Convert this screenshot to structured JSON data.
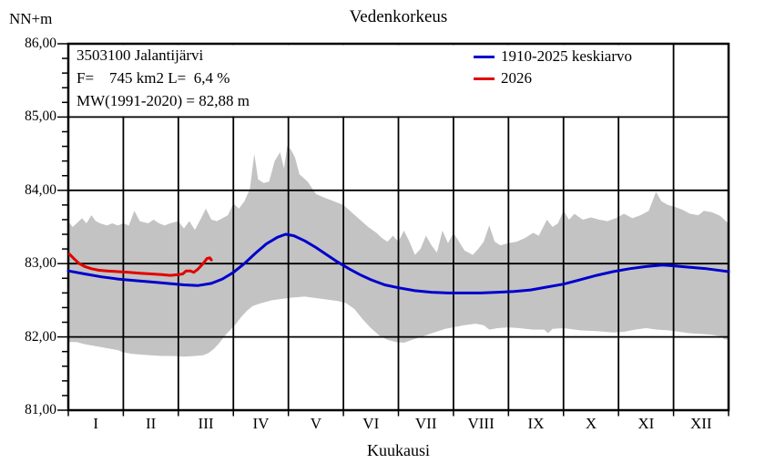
{
  "header": {
    "title": "Vedenkorkeus",
    "y_unit": "NN+m",
    "x_label": "Kuukausi"
  },
  "info_box": {
    "line1": "3503100 Jalantijärvi",
    "line2": "F=    745 km2 L=  6,4 %",
    "line3": "MW(1991-2020) = 82,88 m"
  },
  "legend": {
    "items": [
      {
        "label": "1910-2025 keskiarvo",
        "color": "#0000cd"
      },
      {
        "label": "2026",
        "color": "#e30000"
      }
    ]
  },
  "axis": {
    "y_ticks": [
      {
        "label": "86,00",
        "value": 86
      },
      {
        "label": "85,00",
        "value": 85
      },
      {
        "label": "84,00",
        "value": 84
      },
      {
        "label": "83,00",
        "value": 83
      },
      {
        "label": "82,00",
        "value": 82
      },
      {
        "label": "81,00",
        "value": 81
      }
    ],
    "month_labels": [
      "I",
      "II",
      "III",
      "IV",
      "V",
      "VI",
      "VII",
      "VIII",
      "IX",
      "X",
      "XI",
      "XII"
    ]
  },
  "chart_data": {
    "type": "line",
    "title": "Vedenkorkeus",
    "xlabel": "Kuukausi",
    "ylabel": "NN+m",
    "ylim": [
      81,
      86
    ],
    "xlim_months": [
      0,
      12
    ],
    "y_major_step": 1.0,
    "y_minor_step": 0.2,
    "grid": "major-black",
    "legend_position": "top-right-inside",
    "envelope": {
      "name": "1910-2025 min-max range",
      "color": "#c3c3c3",
      "max": [
        [
          0,
          83.58
        ],
        [
          0.08,
          83.5
        ],
        [
          0.15,
          83.55
        ],
        [
          0.25,
          83.62
        ],
        [
          0.33,
          83.55
        ],
        [
          0.42,
          83.66
        ],
        [
          0.5,
          83.58
        ],
        [
          0.58,
          83.55
        ],
        [
          0.7,
          83.52
        ],
        [
          0.8,
          83.55
        ],
        [
          0.9,
          83.52
        ],
        [
          1,
          83.55
        ],
        [
          1.1,
          83.52
        ],
        [
          1.2,
          83.72
        ],
        [
          1.3,
          83.58
        ],
        [
          1.45,
          83.55
        ],
        [
          1.55,
          83.6
        ],
        [
          1.65,
          83.55
        ],
        [
          1.75,
          83.52
        ],
        [
          1.85,
          83.55
        ],
        [
          2,
          83.58
        ],
        [
          2.1,
          83.48
        ],
        [
          2.2,
          83.58
        ],
        [
          2.3,
          83.46
        ],
        [
          2.4,
          83.6
        ],
        [
          2.5,
          83.75
        ],
        [
          2.6,
          83.6
        ],
        [
          2.7,
          83.58
        ],
        [
          2.8,
          83.62
        ],
        [
          2.9,
          83.66
        ],
        [
          3,
          83.82
        ],
        [
          3.1,
          83.75
        ],
        [
          3.2,
          83.85
        ],
        [
          3.3,
          84.02
        ],
        [
          3.38,
          84.5
        ],
        [
          3.45,
          84.15
        ],
        [
          3.55,
          84.1
        ],
        [
          3.65,
          84.12
        ],
        [
          3.75,
          84.4
        ],
        [
          3.85,
          84.52
        ],
        [
          3.92,
          84.3
        ],
        [
          3.98,
          84.61
        ],
        [
          4.05,
          84.55
        ],
        [
          4.12,
          84.45
        ],
        [
          4.2,
          84.22
        ],
        [
          4.35,
          84.12
        ],
        [
          4.5,
          83.95
        ],
        [
          4.65,
          83.9
        ],
        [
          4.8,
          83.86
        ],
        [
          5,
          83.8
        ],
        [
          5.15,
          83.7
        ],
        [
          5.3,
          83.6
        ],
        [
          5.45,
          83.5
        ],
        [
          5.6,
          83.42
        ],
        [
          5.7,
          83.35
        ],
        [
          5.8,
          83.3
        ],
        [
          5.9,
          83.38
        ],
        [
          6,
          83.3
        ],
        [
          6.1,
          83.45
        ],
        [
          6.2,
          83.3
        ],
        [
          6.3,
          83.12
        ],
        [
          6.4,
          83.2
        ],
        [
          6.5,
          83.38
        ],
        [
          6.6,
          83.25
        ],
        [
          6.7,
          83.15
        ],
        [
          6.8,
          83.45
        ],
        [
          6.9,
          83.28
        ],
        [
          7,
          83.42
        ],
        [
          7.1,
          83.3
        ],
        [
          7.2,
          83.18
        ],
        [
          7.35,
          83.12
        ],
        [
          7.45,
          83.2
        ],
        [
          7.55,
          83.3
        ],
        [
          7.65,
          83.52
        ],
        [
          7.75,
          83.3
        ],
        [
          7.85,
          83.25
        ],
        [
          8,
          83.28
        ],
        [
          8.15,
          83.3
        ],
        [
          8.3,
          83.35
        ],
        [
          8.45,
          83.42
        ],
        [
          8.55,
          83.38
        ],
        [
          8.7,
          83.6
        ],
        [
          8.8,
          83.5
        ],
        [
          8.9,
          83.55
        ],
        [
          9,
          83.72
        ],
        [
          9.1,
          83.6
        ],
        [
          9.2,
          83.68
        ],
        [
          9.35,
          83.6
        ],
        [
          9.5,
          83.63
        ],
        [
          9.65,
          83.6
        ],
        [
          9.8,
          83.58
        ],
        [
          9.95,
          83.62
        ],
        [
          10.1,
          83.68
        ],
        [
          10.25,
          83.62
        ],
        [
          10.4,
          83.66
        ],
        [
          10.55,
          83.72
        ],
        [
          10.68,
          83.98
        ],
        [
          10.78,
          83.85
        ],
        [
          10.9,
          83.8
        ],
        [
          11,
          83.78
        ],
        [
          11.15,
          83.74
        ],
        [
          11.3,
          83.68
        ],
        [
          11.45,
          83.66
        ],
        [
          11.55,
          83.72
        ],
        [
          11.7,
          83.7
        ],
        [
          11.85,
          83.65
        ],
        [
          11.95,
          83.58
        ],
        [
          12,
          83.55
        ]
      ],
      "min": [
        [
          0,
          81.93
        ],
        [
          0.15,
          81.93
        ],
        [
          0.3,
          81.9
        ],
        [
          0.45,
          81.88
        ],
        [
          0.6,
          81.86
        ],
        [
          0.75,
          81.84
        ],
        [
          0.9,
          81.82
        ],
        [
          1,
          81.79
        ],
        [
          1.15,
          81.77
        ],
        [
          1.3,
          81.76
        ],
        [
          1.5,
          81.75
        ],
        [
          1.7,
          81.74
        ],
        [
          1.9,
          81.74
        ],
        [
          2.1,
          81.73
        ],
        [
          2.3,
          81.74
        ],
        [
          2.45,
          81.75
        ],
        [
          2.55,
          81.78
        ],
        [
          2.65,
          81.84
        ],
        [
          2.75,
          81.92
        ],
        [
          2.85,
          82.02
        ],
        [
          2.95,
          82.1
        ],
        [
          3.05,
          82.18
        ],
        [
          3.15,
          82.28
        ],
        [
          3.25,
          82.36
        ],
        [
          3.35,
          82.42
        ],
        [
          3.5,
          82.46
        ],
        [
          3.7,
          82.5
        ],
        [
          3.9,
          82.52
        ],
        [
          4.1,
          82.54
        ],
        [
          4.3,
          82.55
        ],
        [
          4.5,
          82.53
        ],
        [
          4.7,
          82.51
        ],
        [
          4.9,
          82.49
        ],
        [
          5.05,
          82.46
        ],
        [
          5.2,
          82.38
        ],
        [
          5.35,
          82.24
        ],
        [
          5.5,
          82.12
        ],
        [
          5.65,
          82.02
        ],
        [
          5.8,
          81.96
        ],
        [
          5.95,
          81.93
        ],
        [
          6.1,
          81.92
        ],
        [
          6.25,
          81.96
        ],
        [
          6.45,
          82.01
        ],
        [
          6.65,
          82.06
        ],
        [
          6.85,
          82.11
        ],
        [
          7,
          82.13
        ],
        [
          7.2,
          82.16
        ],
        [
          7.4,
          82.18
        ],
        [
          7.55,
          82.16
        ],
        [
          7.65,
          82.1
        ],
        [
          7.8,
          82.12
        ],
        [
          8,
          82.13
        ],
        [
          8.2,
          82.12
        ],
        [
          8.45,
          82.1
        ],
        [
          8.65,
          82.1
        ],
        [
          8.72,
          82.05
        ],
        [
          8.8,
          82.11
        ],
        [
          9,
          82.12
        ],
        [
          9.3,
          82.09
        ],
        [
          9.6,
          82.08
        ],
        [
          9.9,
          82.06
        ],
        [
          10.1,
          82.07
        ],
        [
          10.3,
          82.1
        ],
        [
          10.5,
          82.12
        ],
        [
          10.7,
          82.1
        ],
        [
          10.9,
          82.09
        ],
        [
          11.1,
          82.07
        ],
        [
          11.3,
          82.05
        ],
        [
          11.5,
          82.04
        ],
        [
          11.7,
          82.03
        ],
        [
          11.85,
          82.01
        ],
        [
          11.92,
          81.97
        ],
        [
          12,
          81.96
        ]
      ]
    },
    "series": [
      {
        "name": "1910-2025 keskiarvo",
        "color": "#0000cd",
        "width": 3,
        "points": [
          [
            0,
            82.9
          ],
          [
            0.3,
            82.86
          ],
          [
            0.6,
            82.82
          ],
          [
            0.9,
            82.79
          ],
          [
            1.2,
            82.77
          ],
          [
            1.5,
            82.75
          ],
          [
            1.8,
            82.73
          ],
          [
            2.1,
            82.71
          ],
          [
            2.35,
            82.7
          ],
          [
            2.6,
            82.73
          ],
          [
            2.8,
            82.79
          ],
          [
            3,
            82.88
          ],
          [
            3.2,
            83
          ],
          [
            3.4,
            83.14
          ],
          [
            3.6,
            83.27
          ],
          [
            3.8,
            83.36
          ],
          [
            3.95,
            83.4
          ],
          [
            4.1,
            83.38
          ],
          [
            4.3,
            83.31
          ],
          [
            4.5,
            83.22
          ],
          [
            4.7,
            83.12
          ],
          [
            4.9,
            83.02
          ],
          [
            5.1,
            82.93
          ],
          [
            5.3,
            82.85
          ],
          [
            5.5,
            82.78
          ],
          [
            5.75,
            82.71
          ],
          [
            6,
            82.67
          ],
          [
            6.3,
            82.63
          ],
          [
            6.6,
            82.61
          ],
          [
            6.9,
            82.6
          ],
          [
            7.2,
            82.6
          ],
          [
            7.5,
            82.6
          ],
          [
            7.8,
            82.61
          ],
          [
            8.1,
            82.62
          ],
          [
            8.4,
            82.64
          ],
          [
            8.7,
            82.68
          ],
          [
            9,
            82.72
          ],
          [
            9.3,
            82.78
          ],
          [
            9.6,
            82.84
          ],
          [
            9.9,
            82.89
          ],
          [
            10.2,
            82.93
          ],
          [
            10.5,
            82.96
          ],
          [
            10.8,
            82.98
          ],
          [
            11,
            82.97
          ],
          [
            11.3,
            82.95
          ],
          [
            11.6,
            82.93
          ],
          [
            11.9,
            82.9
          ],
          [
            12,
            82.89
          ]
        ]
      },
      {
        "name": "2026",
        "color": "#e30000",
        "width": 3,
        "points": [
          [
            0.02,
            83.13
          ],
          [
            0.1,
            83.07
          ],
          [
            0.2,
            83
          ],
          [
            0.3,
            82.96
          ],
          [
            0.42,
            82.93
          ],
          [
            0.55,
            82.91
          ],
          [
            0.7,
            82.9
          ],
          [
            0.9,
            82.89
          ],
          [
            1.1,
            82.88
          ],
          [
            1.3,
            82.87
          ],
          [
            1.5,
            82.86
          ],
          [
            1.7,
            82.85
          ],
          [
            1.85,
            82.84
          ],
          [
            2,
            82.85
          ],
          [
            2.08,
            82.86
          ],
          [
            2.14,
            82.9
          ],
          [
            2.22,
            82.9
          ],
          [
            2.28,
            82.88
          ],
          [
            2.35,
            82.92
          ],
          [
            2.45,
            83
          ],
          [
            2.52,
            83.07
          ],
          [
            2.57,
            83.08
          ],
          [
            2.6,
            83.05
          ]
        ]
      }
    ]
  }
}
